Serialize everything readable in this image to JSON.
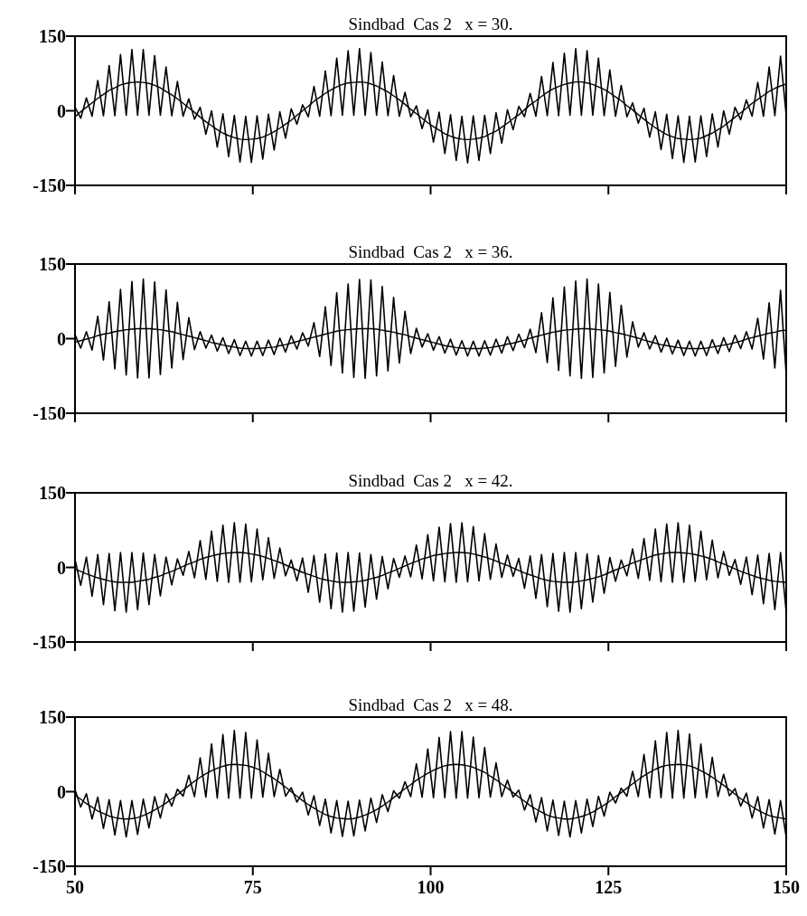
{
  "chart_data": [
    {
      "type": "line",
      "title": "Sindbad  Cas 2   x = 30.",
      "xlim": [
        50,
        150
      ],
      "xticks": [
        50,
        75,
        100,
        125,
        150
      ],
      "ylim": [
        -150,
        150
      ],
      "yticks": [
        -150,
        0,
        150
      ],
      "tick_labels": "y",
      "x": [
        50,
        50.8,
        51.6,
        52.4,
        53.2,
        54,
        54.8,
        55.6,
        56.4,
        57.2,
        58,
        58.8,
        59.6,
        60.4,
        61.2,
        62,
        62.8,
        63.6,
        64.4,
        65.2,
        66,
        66.8,
        67.6,
        68.4,
        69.2,
        70,
        70.8,
        71.6,
        72.4,
        73.2,
        74,
        74.8,
        75.6,
        76.4,
        77.2,
        78,
        78.8,
        79.6,
        80.4,
        81.2,
        82,
        82.8,
        83.6,
        84.4,
        85.2,
        86,
        86.8,
        87.6,
        88.4,
        89.2,
        90,
        90.8,
        91.6,
        92.4,
        93.2,
        94,
        94.8,
        95.6,
        96.4,
        97.2,
        98,
        98.8,
        99.6,
        100.4,
        101.2,
        102,
        102.8,
        103.6,
        104.4,
        105.2,
        106,
        106.8,
        107.6,
        108.4,
        109.2,
        110,
        110.8,
        111.6,
        112.4,
        113.2,
        114,
        114.8,
        115.6,
        116.4,
        117.2,
        118,
        118.8,
        119.6,
        120.4,
        121.2,
        122,
        122.8,
        123.6,
        124.4,
        125.2,
        126,
        126.8,
        127.6,
        128.4,
        129.2,
        130,
        130.8,
        131.6,
        132.4,
        133.2,
        134,
        134.8,
        135.6,
        136.4,
        137.2,
        138,
        138.8,
        139.6,
        140.4,
        141.2,
        142,
        142.8,
        143.6,
        144.4,
        145.2,
        146,
        146.8,
        147.6,
        148.4,
        149.2,
        150
      ],
      "series": [
        {
          "color": "#000000",
          "values": [
            7,
            -15,
            26,
            -11,
            61,
            -10,
            91,
            -10,
            113,
            -9,
            123,
            -9,
            123,
            -9,
            111,
            -9,
            88,
            -10,
            59,
            -11,
            24,
            -17,
            7,
            -47,
            0,
            -73,
            -6,
            -92,
            -9,
            -103,
            -11,
            -104,
            -10,
            -97,
            -7,
            -79,
            -2,
            -55,
            4,
            -27,
            12,
            -12,
            49,
            -11,
            80,
            -10,
            106,
            -9,
            121,
            -9,
            125,
            -9,
            117,
            -9,
            98,
            -10,
            71,
            -11,
            37,
            -12,
            10,
            -36,
            2,
            -63,
            -3,
            -86,
            -8,
            -100,
            -11,
            -105,
            -10,
            -100,
            -9,
            -86,
            -4,
            -65,
            2,
            -38,
            9,
            -12,
            35,
            -11,
            69,
            -10,
            97,
            -10,
            116,
            -9,
            125,
            -9,
            121,
            -9,
            106,
            -10,
            82,
            -11,
            51,
            -12,
            16,
            -25,
            5,
            -53,
            -2,
            -78,
            -7,
            -96,
            -10,
            -104,
            -11,
            -103,
            -10,
            -92,
            -6,
            -73,
            0,
            -47,
            7,
            -18,
            22,
            -11,
            57,
            -11,
            88,
            -10,
            110,
            -9
          ]
        },
        {
          "color": "#000000",
          "values": [
            -12,
            -2,
            7,
            16,
            25,
            33,
            41,
            46,
            52,
            55,
            57,
            58,
            57,
            55,
            51,
            46,
            39,
            32,
            24,
            15,
            6,
            -3,
            -13,
            -22,
            -30,
            -38,
            -45,
            -50,
            -54,
            -57,
            -58,
            -57,
            -56,
            -53,
            -48,
            -42,
            -35,
            -27,
            -19,
            -9,
            0,
            9,
            19,
            27,
            35,
            42,
            48,
            53,
            56,
            57,
            58,
            57,
            54,
            50,
            44,
            38,
            30,
            22,
            13,
            3,
            -6,
            -15,
            -24,
            -32,
            -39,
            -46,
            -51,
            -55,
            -57,
            -58,
            -57,
            -55,
            -52,
            -46,
            -41,
            -33,
            -25,
            -16,
            -8,
            2,
            12,
            20,
            29,
            37,
            44,
            49,
            53,
            56,
            58,
            58,
            56,
            53,
            48,
            43,
            36,
            28,
            20,
            10,
            2,
            -8,
            -17,
            -26,
            -34,
            -41,
            -48,
            -52,
            -56,
            -57,
            -58,
            -57,
            -55,
            -50,
            -45,
            -38,
            -31,
            -22,
            -13,
            -4,
            5,
            15,
            23,
            31,
            39,
            45,
            50,
            54
          ]
        }
      ]
    },
    {
      "type": "line",
      "title": "Sindbad  Cas 2   x = 36.",
      "xlim": [
        50,
        150
      ],
      "xticks": [
        50,
        75,
        100,
        125,
        150
      ],
      "ylim": [
        -150,
        150
      ],
      "yticks": [
        -150,
        0,
        150
      ],
      "tick_labels": "y",
      "x": [
        50,
        50.8,
        51.6,
        52.4,
        53.2,
        54,
        54.8,
        55.6,
        56.4,
        57.2,
        58,
        58.8,
        59.6,
        60.4,
        61.2,
        62,
        62.8,
        63.6,
        64.4,
        65.2,
        66,
        66.8,
        67.6,
        68.4,
        69.2,
        70,
        70.8,
        71.6,
        72.4,
        73.2,
        74,
        74.8,
        75.6,
        76.4,
        77.2,
        78,
        78.8,
        79.6,
        80.4,
        81.2,
        82,
        82.8,
        83.6,
        84.4,
        85.2,
        86,
        86.8,
        87.6,
        88.4,
        89.2,
        90,
        90.8,
        91.6,
        92.4,
        93.2,
        94,
        94.8,
        95.6,
        96.4,
        97.2,
        98,
        98.8,
        99.6,
        100.4,
        101.2,
        102,
        102.8,
        103.6,
        104.4,
        105.2,
        106,
        106.8,
        107.6,
        108.4,
        109.2,
        110,
        110.8,
        111.6,
        112.4,
        113.2,
        114,
        114.8,
        115.6,
        116.4,
        117.2,
        118,
        118.8,
        119.6,
        120.4,
        121.2,
        122,
        122.8,
        123.6,
        124.4,
        125.2,
        126,
        126.8,
        127.6,
        128.4,
        129.2,
        130,
        130.8,
        131.6,
        132.4,
        133.2,
        134,
        134.8,
        135.6,
        136.4,
        137.2,
        138,
        138.8,
        139.6,
        140.4,
        141.2,
        142,
        142.8,
        143.6,
        144.4,
        145.2,
        146,
        146.8,
        147.6,
        148.4,
        149.2,
        150
      ],
      "series": [
        {
          "color": "#000000",
          "values": [
            8,
            -19,
            14,
            -23,
            45,
            -43,
            74,
            -61,
            99,
            -73,
            115,
            -79,
            120,
            -79,
            114,
            -72,
            98,
            -59,
            73,
            -42,
            42,
            -22,
            14,
            -19,
            7,
            -25,
            2,
            -30,
            -2,
            -34,
            -5,
            -35,
            -5,
            -34,
            -3,
            -32,
            1,
            -27,
            6,
            -21,
            12,
            -15,
            32,
            -36,
            64,
            -54,
            92,
            -69,
            110,
            -78,
            119,
            -80,
            118,
            -75,
            105,
            -65,
            83,
            -49,
            55,
            -30,
            21,
            -17,
            10,
            -23,
            4,
            -29,
            -1,
            -33,
            -4,
            -35,
            -5,
            -35,
            -4,
            -33,
            -1,
            -29,
            4,
            -24,
            9,
            -18,
            19,
            -28,
            52,
            -48,
            82,
            -64,
            104,
            -75,
            116,
            -80,
            120,
            -78,
            110,
            -69,
            93,
            -56,
            67,
            -37,
            34,
            -17,
            12,
            -21,
            6,
            -27,
            1,
            -31,
            -3,
            -34,
            -5,
            -35,
            -5,
            -34,
            -2,
            -30,
            2,
            -26,
            7,
            -20,
            14,
            -21,
            41,
            -41,
            72,
            -59,
            97,
            -72
          ]
        },
        {
          "color": "#000000",
          "values": [
            -7,
            -4,
            -1,
            2,
            6,
            9,
            11,
            14,
            16,
            18,
            19,
            20,
            20,
            20,
            19,
            18,
            16,
            14,
            11,
            8,
            5,
            2,
            -1,
            -4,
            -8,
            -10,
            -13,
            -15,
            -17,
            -19,
            -20,
            -20,
            -20,
            -19,
            -18,
            -17,
            -14,
            -12,
            -9,
            -6,
            -3,
            0,
            3,
            6,
            9,
            12,
            15,
            17,
            18,
            19,
            20,
            20,
            20,
            19,
            17,
            15,
            13,
            10,
            8,
            4,
            1,
            -2,
            -5,
            -8,
            -11,
            -14,
            -16,
            -18,
            -19,
            -20,
            -20,
            -20,
            -19,
            -18,
            -16,
            -14,
            -11,
            -9,
            -6,
            -3,
            1,
            4,
            7,
            10,
            13,
            15,
            17,
            18,
            19,
            20,
            20,
            19,
            18,
            17,
            15,
            12,
            10,
            7,
            4,
            1,
            -3,
            -6,
            -9,
            -12,
            -14,
            -16,
            -18,
            -19,
            -20,
            -20,
            -20,
            -19,
            -17,
            -15,
            -13,
            -11,
            -8,
            -5,
            -1,
            2,
            5,
            8,
            11,
            13,
            16,
            17
          ]
        }
      ]
    },
    {
      "type": "line",
      "title": "Sindbad  Cas 2   x = 42.",
      "xlim": [
        50,
        150
      ],
      "xticks": [
        50,
        75,
        100,
        125,
        150
      ],
      "ylim": [
        -150,
        150
      ],
      "yticks": [
        -150,
        0,
        150
      ],
      "tick_labels": "y",
      "x": [
        50,
        50.8,
        51.6,
        52.4,
        53.2,
        54,
        54.8,
        55.6,
        56.4,
        57.2,
        58,
        58.8,
        59.6,
        60.4,
        61.2,
        62,
        62.8,
        63.6,
        64.4,
        65.2,
        66,
        66.8,
        67.6,
        68.4,
        69.2,
        70,
        70.8,
        71.6,
        72.4,
        73.2,
        74,
        74.8,
        75.6,
        76.4,
        77.2,
        78,
        78.8,
        79.6,
        80.4,
        81.2,
        82,
        82.8,
        83.6,
        84.4,
        85.2,
        86,
        86.8,
        87.6,
        88.4,
        89.2,
        90,
        90.8,
        91.6,
        92.4,
        93.2,
        94,
        94.8,
        95.6,
        96.4,
        97.2,
        98,
        98.8,
        99.6,
        100.4,
        101.2,
        102,
        102.8,
        103.6,
        104.4,
        105.2,
        106,
        106.8,
        107.6,
        108.4,
        109.2,
        110,
        110.8,
        111.6,
        112.4,
        113.2,
        114,
        114.8,
        115.6,
        116.4,
        117.2,
        118,
        118.8,
        119.6,
        120.4,
        121.2,
        122,
        122.8,
        123.6,
        124.4,
        125.2,
        126,
        126.8,
        127.6,
        128.4,
        129.2,
        130,
        130.8,
        131.6,
        132.4,
        133.2,
        134,
        134.8,
        135.6,
        136.4,
        137.2,
        138,
        138.8,
        139.6,
        140.4,
        141.2,
        142,
        142.8,
        143.6,
        144.4,
        145.2,
        146,
        146.8,
        147.6,
        148.4,
        149.2,
        150
      ],
      "series": [
        {
          "color": "#000000",
          "values": [
            16,
            -36,
            21,
            -58,
            26,
            -75,
            28,
            -87,
            30,
            -90,
            30,
            -85,
            29,
            -75,
            26,
            -57,
            21,
            -35,
            17,
            -16,
            32,
            -21,
            54,
            -24,
            73,
            -28,
            85,
            -30,
            90,
            -30,
            87,
            -29,
            77,
            -25,
            60,
            -22,
            39,
            -17,
            15,
            -27,
            19,
            -50,
            24,
            -70,
            27,
            -83,
            29,
            -90,
            30,
            -88,
            29,
            -80,
            26,
            -64,
            22,
            -43,
            18,
            -20,
            23,
            -19,
            45,
            -23,
            66,
            -27,
            81,
            -29,
            88,
            -30,
            90,
            -29,
            82,
            -27,
            68,
            -24,
            47,
            -20,
            25,
            -18,
            18,
            -42,
            23,
            -62,
            26,
            -79,
            28,
            -88,
            30,
            -90,
            30,
            -83,
            27,
            -70,
            24,
            -52,
            20,
            -28,
            15,
            -17,
            37,
            -22,
            58,
            -26,
            77,
            -29,
            87,
            -30,
            90,
            -30,
            85,
            -28,
            73,
            -25,
            55,
            -21,
            32,
            -16,
            16,
            -34,
            21,
            -55,
            25,
            -73,
            28,
            -85,
            30,
            -90
          ]
        },
        {
          "color": "#000000",
          "values": [
            -4,
            -8,
            -13,
            -17,
            -21,
            -24,
            -27,
            -29,
            -30,
            -30,
            -30,
            -28,
            -26,
            -24,
            -20,
            -17,
            -12,
            -8,
            -3,
            2,
            7,
            11,
            16,
            20,
            23,
            26,
            28,
            29,
            30,
            30,
            29,
            27,
            25,
            22,
            18,
            14,
            10,
            5,
            0,
            -5,
            -10,
            -14,
            -18,
            -22,
            -25,
            -27,
            -29,
            -30,
            -30,
            -29,
            -28,
            -26,
            -23,
            -20,
            -16,
            -11,
            -7,
            -2,
            3,
            8,
            12,
            17,
            20,
            24,
            26,
            28,
            29,
            30,
            30,
            29,
            27,
            24,
            21,
            17,
            13,
            8,
            4,
            -1,
            -6,
            -11,
            -15,
            -19,
            -23,
            -26,
            -28,
            -29,
            -30,
            -30,
            -29,
            -27,
            -25,
            -22,
            -19,
            -15,
            -10,
            -5,
            -1,
            4,
            9,
            13,
            17,
            21,
            25,
            27,
            29,
            30,
            30,
            29,
            28,
            26,
            23,
            20,
            16,
            11,
            7,
            2,
            -3,
            -8,
            -12,
            -16,
            -20,
            -23,
            -26,
            -28,
            -29,
            -30
          ]
        }
      ]
    },
    {
      "type": "line",
      "title": "Sindbad  Cas 2   x = 48.",
      "xlim": [
        50,
        150
      ],
      "xticks": [
        50,
        75,
        100,
        125,
        150
      ],
      "ylim": [
        -150,
        150
      ],
      "yticks": [
        -150,
        0,
        150
      ],
      "x": [
        50,
        50.8,
        51.6,
        52.4,
        53.2,
        54,
        54.8,
        55.6,
        56.4,
        57.2,
        58,
        58.8,
        59.6,
        60.4,
        61.2,
        62,
        62.8,
        63.6,
        64.4,
        65.2,
        66,
        66.8,
        67.6,
        68.4,
        69.2,
        70,
        70.8,
        71.6,
        72.4,
        73.2,
        74,
        74.8,
        75.6,
        76.4,
        77.2,
        78,
        78.8,
        79.6,
        80.4,
        81.2,
        82,
        82.8,
        83.6,
        84.4,
        85.2,
        86,
        86.8,
        87.6,
        88.4,
        89.2,
        90,
        90.8,
        91.6,
        92.4,
        93.2,
        94,
        94.8,
        95.6,
        96.4,
        97.2,
        98,
        98.8,
        99.6,
        100.4,
        101.2,
        102,
        102.8,
        103.6,
        104.4,
        105.2,
        106,
        106.8,
        107.6,
        108.4,
        109.2,
        110,
        110.8,
        111.6,
        112.4,
        113.2,
        114,
        114.8,
        115.6,
        116.4,
        117.2,
        118,
        118.8,
        119.6,
        120.4,
        121.2,
        122,
        122.8,
        123.6,
        124.4,
        125.2,
        126,
        126.8,
        127.6,
        128.4,
        129.2,
        130,
        130.8,
        131.6,
        132.4,
        133.2,
        134,
        134.8,
        135.6,
        136.4,
        137.2,
        138,
        138.8,
        139.6,
        140.4,
        141.2,
        142,
        142.8,
        143.6,
        144.4,
        145.2,
        146,
        146.8,
        147.6,
        148.4,
        149.2,
        150
      ],
      "series": [
        {
          "color": "#000000",
          "values": [
            4,
            -31,
            -4,
            -55,
            -11,
            -74,
            -16,
            -87,
            -18,
            -91,
            -18,
            -86,
            -15,
            -73,
            -10,
            -53,
            -4,
            -29,
            5,
            -9,
            33,
            -10,
            68,
            -11,
            96,
            -13,
            115,
            -13,
            123,
            -13,
            119,
            -13,
            104,
            -11,
            77,
            -10,
            45,
            -9,
            8,
            -21,
            -1,
            -47,
            -8,
            -68,
            -15,
            -83,
            -18,
            -90,
            -19,
            -89,
            -17,
            -79,
            -13,
            -62,
            -6,
            -40,
            2,
            -13,
            20,
            -10,
            56,
            -11,
            86,
            -12,
            109,
            -12,
            121,
            -13,
            121,
            -13,
            110,
            -12,
            89,
            -11,
            58,
            -10,
            23,
            -11,
            3,
            -37,
            -6,
            -61,
            -12,
            -79,
            -17,
            -88,
            -19,
            -91,
            -18,
            -83,
            -15,
            -70,
            -9,
            -49,
            -1,
            -23,
            7,
            -9,
            41,
            -10,
            75,
            -12,
            102,
            -12,
            119,
            -13,
            123,
            -13,
            116,
            -12,
            96,
            -12,
            69,
            -10,
            35,
            -8,
            6,
            -29,
            -3,
            -53,
            -10,
            -73,
            -16,
            -85,
            -18,
            -91
          ]
        },
        {
          "color": "#000000",
          "values": [
            -7,
            -15,
            -24,
            -31,
            -39,
            -44,
            -49,
            -52,
            -54,
            -55,
            -54,
            -52,
            -48,
            -43,
            -37,
            -30,
            -23,
            -14,
            -6,
            3,
            12,
            21,
            29,
            36,
            42,
            47,
            51,
            54,
            55,
            54,
            53,
            50,
            46,
            40,
            33,
            26,
            18,
            9,
            0,
            -9,
            -18,
            -26,
            -33,
            -40,
            -46,
            -50,
            -53,
            -54,
            -55,
            -54,
            -51,
            -47,
            -42,
            -36,
            -29,
            -21,
            -12,
            -3,
            6,
            14,
            23,
            30,
            37,
            43,
            48,
            52,
            54,
            55,
            54,
            52,
            49,
            44,
            39,
            31,
            24,
            15,
            7,
            -2,
            -11,
            -19,
            -28,
            -35,
            -41,
            -47,
            -51,
            -53,
            -55,
            -55,
            -53,
            -50,
            -46,
            -41,
            -34,
            -27,
            -19,
            -10,
            -2,
            7,
            16,
            24,
            32,
            39,
            45,
            50,
            53,
            54,
            55,
            54,
            52,
            48,
            42,
            36,
            29,
            21,
            13,
            4,
            -5,
            -14,
            -22,
            -30,
            -37,
            -43,
            -48,
            -51,
            -53,
            -55
          ]
        }
      ]
    }
  ]
}
